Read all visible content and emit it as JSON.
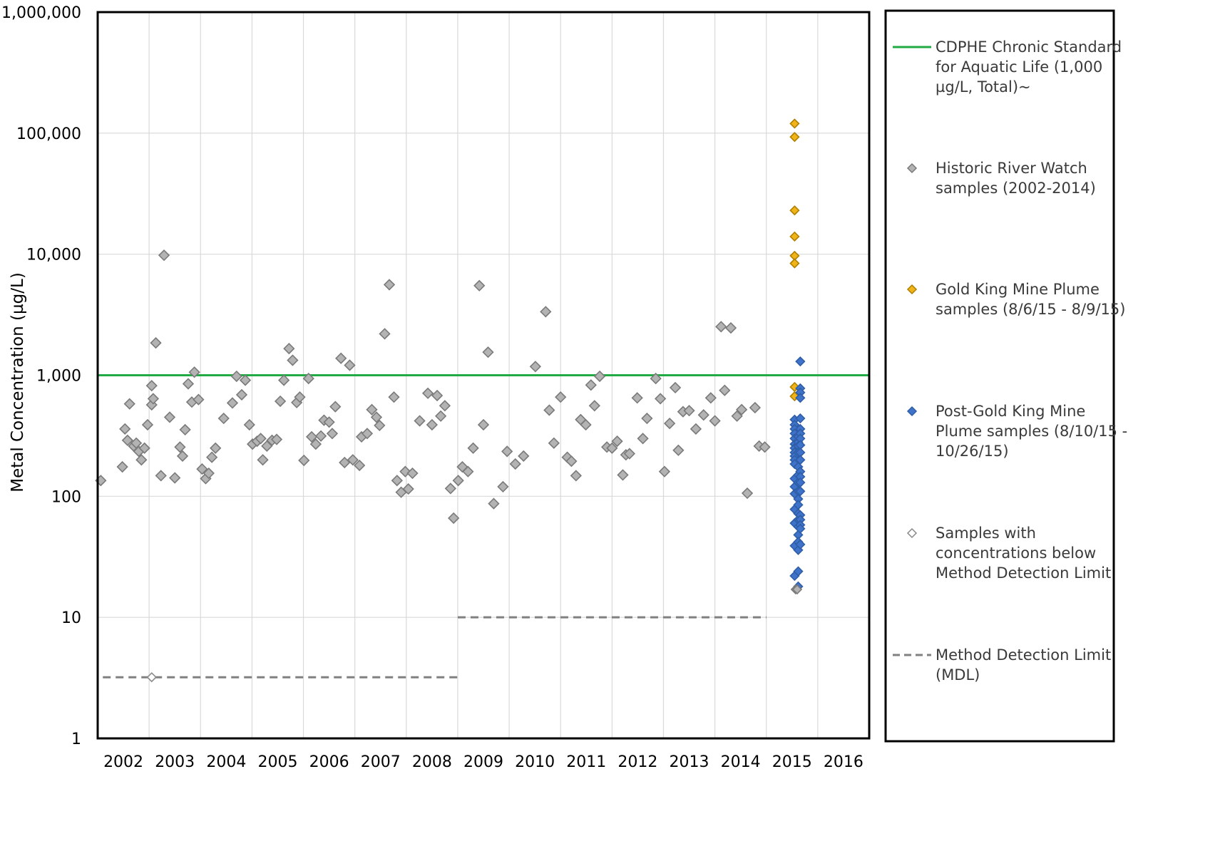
{
  "chart_data": {
    "type": "scatter",
    "title": "",
    "ylabel": "Metal Concentration (µg/L)",
    "xlabel": "",
    "y_scale": "log",
    "ylim": [
      1,
      1000000
    ],
    "y_ticks": [
      1,
      10,
      100,
      1000,
      10000,
      100000,
      1000000
    ],
    "y_tick_labels": [
      "1",
      "10",
      "100",
      "1,000",
      "10,000",
      "100,000",
      "1,000,000"
    ],
    "xlim": [
      2001.5,
      2016.5
    ],
    "x_tick_labels": [
      "2002",
      "2003",
      "2004",
      "2005",
      "2006",
      "2007",
      "2008",
      "2009",
      "2010",
      "2011",
      "2012",
      "2013",
      "2014",
      "2015",
      "2016"
    ],
    "grid": true,
    "legend_position": "right",
    "colors": {
      "standard": "#22aa44",
      "historic_fill": "#b3b3b3",
      "historic_edge": "#7a7a7a",
      "plume": "#f0b418",
      "post_plume": "#3f72c9",
      "mdl": "#808080"
    },
    "reference_lines": [
      {
        "name": "CDPHE Chronic Standard for Aquatic Life (1,000 µg/L, Total)~",
        "y": 1000
      },
      {
        "name": "Method Detection Limit (MDL)",
        "segments": [
          {
            "x_start": 2001.6,
            "x_end": 2008.5,
            "y": 3.2
          },
          {
            "x_start": 2008.5,
            "x_end": 2014.5,
            "y": 10
          }
        ]
      }
    ],
    "series": [
      {
        "name": "Historic River Watch samples (2002-2014)",
        "points": [
          [
            2001.56,
            135
          ],
          [
            2001.98,
            175
          ],
          [
            2002.03,
            360
          ],
          [
            2002.08,
            290
          ],
          [
            2002.12,
            580
          ],
          [
            2002.2,
            260
          ],
          [
            2002.25,
            275
          ],
          [
            2002.3,
            235
          ],
          [
            2002.35,
            200
          ],
          [
            2002.41,
            250
          ],
          [
            2002.47,
            390
          ],
          [
            2002.55,
            570
          ],
          [
            2002.55,
            820
          ],
          [
            2002.58,
            640
          ],
          [
            2002.63,
            1850
          ],
          [
            2002.73,
            148
          ],
          [
            2002.79,
            9800
          ],
          [
            2002.9,
            450
          ],
          [
            2003.0,
            142
          ],
          [
            2003.1,
            255
          ],
          [
            2003.15,
            215
          ],
          [
            2003.2,
            355
          ],
          [
            2003.26,
            850
          ],
          [
            2003.33,
            600
          ],
          [
            2003.38,
            1060
          ],
          [
            2003.46,
            630
          ],
          [
            2003.53,
            168
          ],
          [
            2003.6,
            140
          ],
          [
            2003.66,
            155
          ],
          [
            2003.72,
            210
          ],
          [
            2003.79,
            250
          ],
          [
            2003.95,
            440
          ],
          [
            2004.12,
            590
          ],
          [
            2004.2,
            980
          ],
          [
            2004.3,
            690
          ],
          [
            2004.37,
            910
          ],
          [
            2004.45,
            390
          ],
          [
            2004.51,
            270
          ],
          [
            2004.6,
            285
          ],
          [
            2004.67,
            300
          ],
          [
            2004.71,
            200
          ],
          [
            2004.79,
            260
          ],
          [
            2004.89,
            290
          ],
          [
            2004.98,
            295
          ],
          [
            2005.05,
            610
          ],
          [
            2005.12,
            910
          ],
          [
            2005.22,
            1660
          ],
          [
            2005.29,
            1330
          ],
          [
            2005.37,
            595
          ],
          [
            2005.43,
            660
          ],
          [
            2005.51,
            198
          ],
          [
            2005.6,
            940
          ],
          [
            2005.66,
            310
          ],
          [
            2005.74,
            270
          ],
          [
            2005.84,
            315
          ],
          [
            2005.9,
            425
          ],
          [
            2006.0,
            410
          ],
          [
            2006.06,
            330
          ],
          [
            2006.12,
            550
          ],
          [
            2006.23,
            1380
          ],
          [
            2006.3,
            190
          ],
          [
            2006.4,
            1210
          ],
          [
            2006.46,
            200
          ],
          [
            2006.59,
            180
          ],
          [
            2006.63,
            310
          ],
          [
            2006.74,
            330
          ],
          [
            2006.83,
            520
          ],
          [
            2006.92,
            450
          ],
          [
            2006.98,
            385
          ],
          [
            2007.08,
            2200
          ],
          [
            2007.17,
            5600
          ],
          [
            2007.26,
            660
          ],
          [
            2007.32,
            135
          ],
          [
            2007.4,
            108
          ],
          [
            2007.48,
            160
          ],
          [
            2007.54,
            115
          ],
          [
            2007.62,
            155
          ],
          [
            2007.76,
            420
          ],
          [
            2007.92,
            710
          ],
          [
            2008.0,
            390
          ],
          [
            2008.1,
            680
          ],
          [
            2008.17,
            460
          ],
          [
            2008.25,
            560
          ],
          [
            2008.36,
            116
          ],
          [
            2008.42,
            66
          ],
          [
            2008.51,
            135
          ],
          [
            2008.59,
            175
          ],
          [
            2008.7,
            160
          ],
          [
            2008.8,
            250
          ],
          [
            2008.92,
            5500
          ],
          [
            2009.0,
            390
          ],
          [
            2009.09,
            1550
          ],
          [
            2009.2,
            87
          ],
          [
            2009.38,
            120
          ],
          [
            2009.46,
            235
          ],
          [
            2009.62,
            185
          ],
          [
            2009.78,
            215
          ],
          [
            2010.01,
            1180
          ],
          [
            2010.21,
            3350
          ],
          [
            2010.28,
            515
          ],
          [
            2010.37,
            275
          ],
          [
            2010.5,
            660
          ],
          [
            2010.63,
            210
          ],
          [
            2010.71,
            195
          ],
          [
            2010.8,
            148
          ],
          [
            2010.89,
            430
          ],
          [
            2010.99,
            390
          ],
          [
            2011.09,
            830
          ],
          [
            2011.16,
            560
          ],
          [
            2011.26,
            980
          ],
          [
            2011.4,
            255
          ],
          [
            2011.5,
            250
          ],
          [
            2011.6,
            285
          ],
          [
            2011.71,
            150
          ],
          [
            2011.77,
            220
          ],
          [
            2011.84,
            225
          ],
          [
            2011.99,
            650
          ],
          [
            2012.1,
            300
          ],
          [
            2012.18,
            440
          ],
          [
            2012.35,
            940
          ],
          [
            2012.44,
            640
          ],
          [
            2012.52,
            160
          ],
          [
            2012.62,
            400
          ],
          [
            2012.73,
            790
          ],
          [
            2012.79,
            240
          ],
          [
            2012.88,
            500
          ],
          [
            2013.0,
            510
          ],
          [
            2013.13,
            360
          ],
          [
            2013.28,
            470
          ],
          [
            2013.42,
            650
          ],
          [
            2013.5,
            420
          ],
          [
            2013.62,
            2520
          ],
          [
            2013.69,
            750
          ],
          [
            2013.81,
            2460
          ],
          [
            2013.93,
            460
          ],
          [
            2014.02,
            520
          ],
          [
            2014.13,
            106
          ],
          [
            2014.28,
            540
          ],
          [
            2014.36,
            260
          ],
          [
            2014.47,
            255
          ]
        ]
      },
      {
        "name": "Gold King Mine Plume samples (8/6/15 - 8/9/15)",
        "points": [
          [
            2015.05,
            120000
          ],
          [
            2015.05,
            93000
          ],
          [
            2015.05,
            23000
          ],
          [
            2015.05,
            14000
          ],
          [
            2015.05,
            9700
          ],
          [
            2015.05,
            8400
          ],
          [
            2015.05,
            800
          ],
          [
            2015.05,
            670
          ]
        ]
      },
      {
        "name": "Post-Gold King Mine Plume samples (8/10/15 - 10/26/15)",
        "points": [
          [
            2015.05,
            430
          ],
          [
            2015.05,
            390
          ],
          [
            2015.05,
            360
          ],
          [
            2015.05,
            330
          ],
          [
            2015.05,
            300
          ],
          [
            2015.05,
            270
          ],
          [
            2015.05,
            250
          ],
          [
            2015.05,
            230
          ],
          [
            2015.05,
            215
          ],
          [
            2015.05,
            200
          ],
          [
            2015.05,
            185
          ],
          [
            2015.05,
            140
          ],
          [
            2015.05,
            120
          ],
          [
            2015.05,
            105
          ],
          [
            2015.05,
            78
          ],
          [
            2015.05,
            60
          ],
          [
            2015.05,
            39
          ],
          [
            2015.05,
            22
          ],
          [
            2015.12,
            310
          ],
          [
            2015.12,
            280
          ],
          [
            2015.12,
            260
          ],
          [
            2015.12,
            230
          ],
          [
            2015.12,
            175
          ],
          [
            2015.12,
            150
          ],
          [
            2015.12,
            130
          ],
          [
            2015.12,
            110
          ],
          [
            2015.12,
            95
          ],
          [
            2015.12,
            85
          ],
          [
            2015.12,
            72
          ],
          [
            2015.12,
            64
          ],
          [
            2015.12,
            56
          ],
          [
            2015.12,
            48
          ],
          [
            2015.12,
            42
          ],
          [
            2015.12,
            36
          ],
          [
            2015.12,
            24
          ],
          [
            2015.12,
            18
          ],
          [
            2015.16,
            1300
          ],
          [
            2015.16,
            780
          ],
          [
            2015.16,
            720
          ],
          [
            2015.16,
            650
          ],
          [
            2015.16,
            440
          ],
          [
            2015.16,
            360
          ],
          [
            2015.16,
            330
          ],
          [
            2015.16,
            300
          ],
          [
            2015.16,
            265
          ],
          [
            2015.16,
            230
          ],
          [
            2015.16,
            200
          ],
          [
            2015.16,
            160
          ],
          [
            2015.16,
            145
          ],
          [
            2015.16,
            130
          ],
          [
            2015.16,
            110
          ],
          [
            2015.16,
            70
          ],
          [
            2015.16,
            64
          ],
          [
            2015.16,
            58
          ],
          [
            2015.16,
            54
          ],
          [
            2015.16,
            40
          ]
        ]
      },
      {
        "name": "Samples with concentrations below Method Detection Limit",
        "points": [
          [
            2002.55,
            3.2
          ],
          [
            2015.07,
            17
          ],
          [
            2015.1,
            17
          ]
        ]
      }
    ],
    "legend": [
      {
        "key": "standard",
        "label": "CDPHE Chronic Standard for Aquatic Life (1,000 µg/L, Total)~"
      },
      {
        "key": "historic",
        "label": "Historic River Watch samples (2002-2014)"
      },
      {
        "key": "plume",
        "label": "Gold King Mine Plume samples (8/6/15 - 8/9/15)"
      },
      {
        "key": "post_plume",
        "label": "Post-Gold King Mine Plume samples (8/10/15 - 10/26/15)"
      },
      {
        "key": "below_mdl",
        "label": "Samples with concentrations below Method Detection Limit"
      },
      {
        "key": "mdl",
        "label": "Method Detection Limit (MDL)"
      }
    ]
  }
}
